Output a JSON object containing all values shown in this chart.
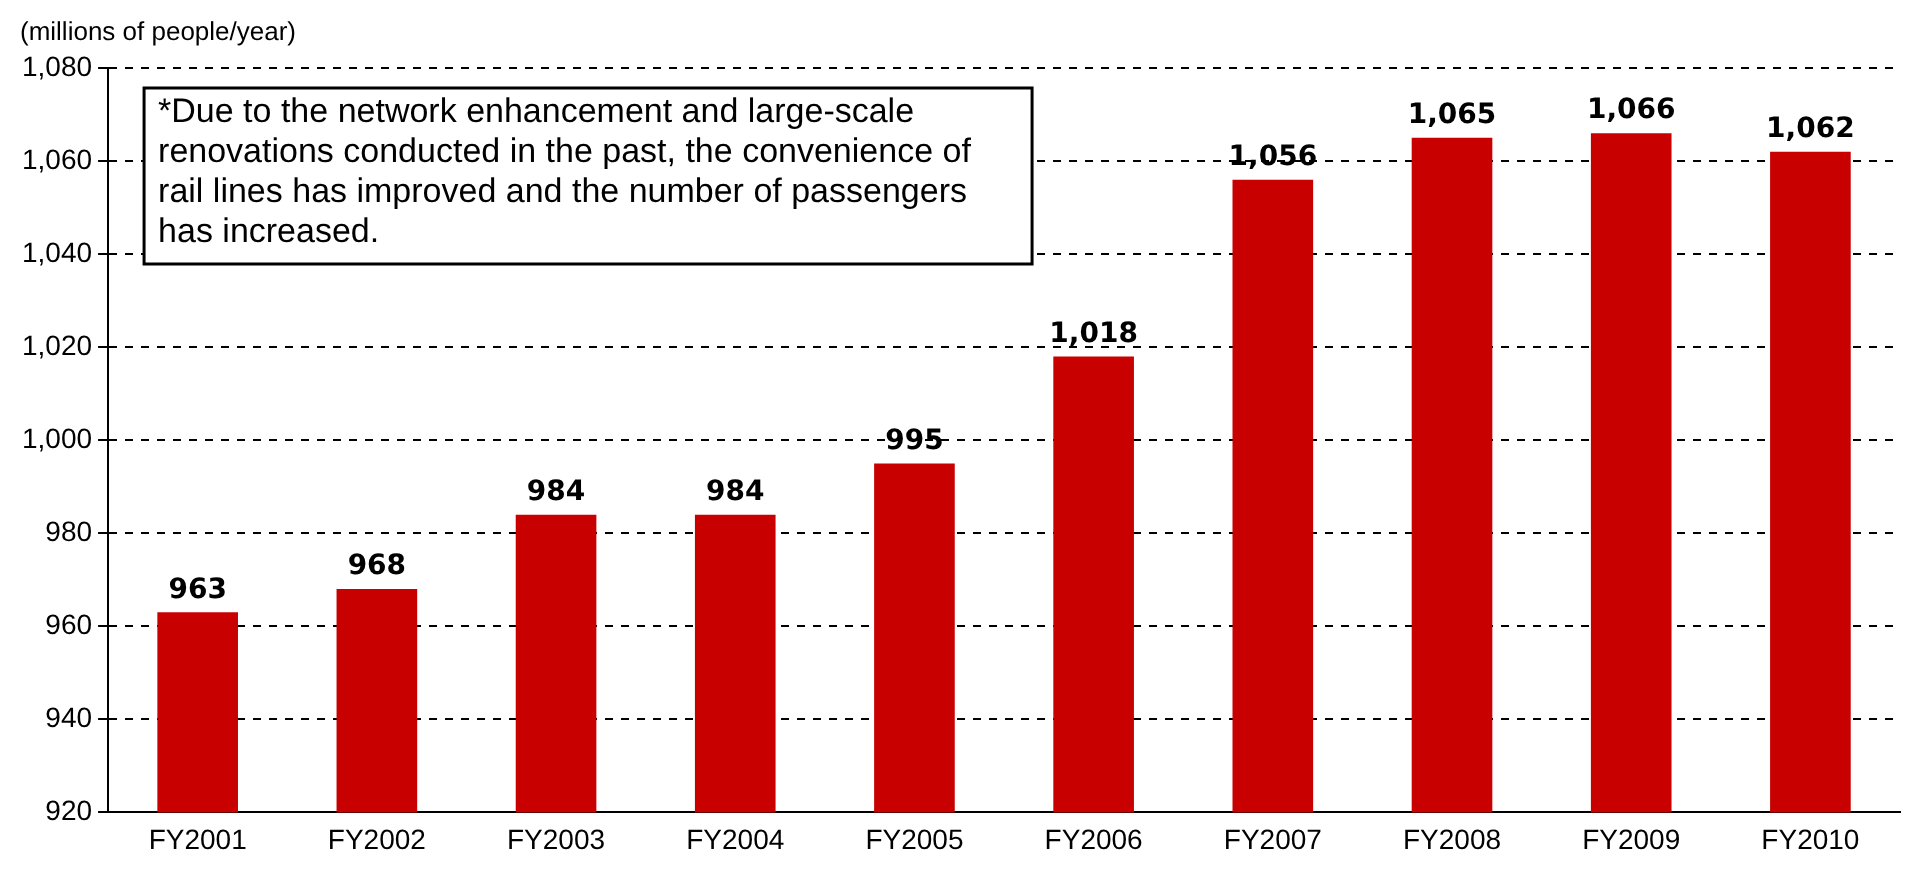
{
  "chart_data": {
    "type": "bar",
    "ylabel": "(millions of people/year)",
    "categories": [
      "FY2001",
      "FY2002",
      "FY2003",
      "FY2004",
      "FY2005",
      "FY2006",
      "FY2007",
      "FY2008",
      "FY2009",
      "FY2010"
    ],
    "values": [
      963,
      968,
      984,
      984,
      995,
      1018,
      1056,
      1065,
      1066,
      1062
    ],
    "value_labels": [
      "963",
      "968",
      "984",
      "984",
      "995",
      "1,018",
      "1,056",
      "1,065",
      "1,066",
      "1,062"
    ],
    "color": "#c80000",
    "ylim": [
      920,
      1080
    ],
    "yticks": [
      {
        "value": 920,
        "label": "920"
      },
      {
        "value": 940,
        "label": "940"
      },
      {
        "value": 960,
        "label": "960"
      },
      {
        "value": 980,
        "label": "980"
      },
      {
        "value": 1000,
        "label": "1,000"
      },
      {
        "value": 1020,
        "label": "1,020"
      },
      {
        "value": 1040,
        "label": "1,040"
      },
      {
        "value": 1060,
        "label": "1,060"
      },
      {
        "value": 1080,
        "label": "1,080"
      }
    ],
    "grid": "y",
    "legend": false,
    "annotations": [
      "*Due to the network enhancement and large-scale renovations conducted in the past, the convenience of rail lines has improved and the number of passengers has increased."
    ]
  }
}
